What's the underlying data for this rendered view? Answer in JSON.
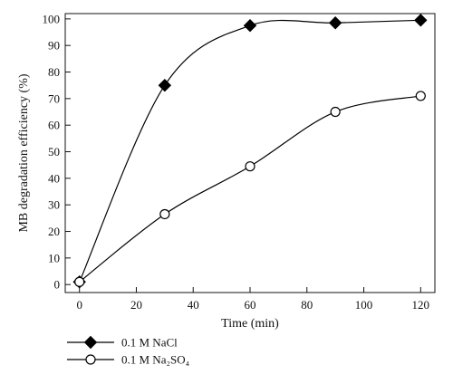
{
  "chart_data": {
    "type": "line",
    "xlabel": "Time (min)",
    "ylabel": "MB degradation efficiency (%)",
    "xlim": [
      -5,
      125
    ],
    "ylim": [
      -3,
      102
    ],
    "xticks": [
      0,
      20,
      40,
      60,
      80,
      100,
      120
    ],
    "yticks": [
      0,
      10,
      20,
      30,
      40,
      50,
      60,
      70,
      80,
      90,
      100
    ],
    "grid": false,
    "legend_position": "bottom-left",
    "series": [
      {
        "name": "0.1 M NaCl",
        "marker": "filled-diamond",
        "x": [
          0,
          30,
          60,
          90,
          120
        ],
        "y": [
          1,
          75,
          97.5,
          98.5,
          99.5
        ]
      },
      {
        "name": "0.1 M Na₂SO₄",
        "marker": "open-circle",
        "x": [
          0,
          30,
          60,
          90,
          120
        ],
        "y": [
          1,
          26.5,
          44.5,
          65,
          71
        ]
      }
    ]
  }
}
